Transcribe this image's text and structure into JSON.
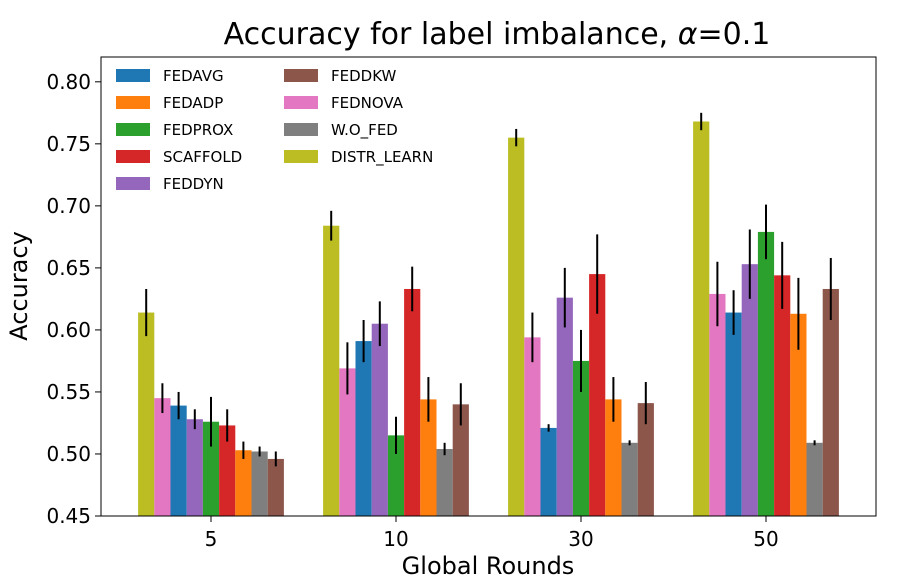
{
  "chart_data": {
    "type": "bar",
    "title": "Accuracy for label imbalance, α=0.1",
    "title_prefix": "Accuracy for label imbalance, ",
    "title_symbol": "α",
    "title_suffix": "=0.1",
    "xlabel": "Global Rounds",
    "ylabel": "Accuracy",
    "categories": [
      "5",
      "10",
      "30",
      "50"
    ],
    "ylim": [
      0.45,
      0.82
    ],
    "yticks": [
      "0.45",
      "0.50",
      "0.55",
      "0.60",
      "0.65",
      "0.70",
      "0.75",
      "0.80"
    ],
    "legend_position": "upper-left, 2 columns",
    "grid": false,
    "series": [
      {
        "name": "FEDAVG",
        "color": "#1f77b4",
        "values": [
          0.539,
          0.591,
          0.521,
          0.614
        ],
        "errors": [
          0.011,
          0.017,
          0.003,
          0.018
        ]
      },
      {
        "name": "FEDADP",
        "color": "#ff7f0e",
        "values": [
          0.503,
          0.544,
          0.544,
          0.613
        ],
        "errors": [
          0.007,
          0.018,
          0.018,
          0.029
        ]
      },
      {
        "name": "FEDPROX",
        "color": "#2ca02c",
        "values": [
          0.526,
          0.515,
          0.575,
          0.679
        ],
        "errors": [
          0.02,
          0.015,
          0.025,
          0.022
        ]
      },
      {
        "name": "SCAFFOLD",
        "color": "#d62728",
        "values": [
          0.523,
          0.633,
          0.645,
          0.644
        ],
        "errors": [
          0.013,
          0.018,
          0.032,
          0.027
        ]
      },
      {
        "name": "FEDDYN",
        "color": "#9467bd",
        "values": [
          0.528,
          0.605,
          0.626,
          0.653
        ],
        "errors": [
          0.008,
          0.018,
          0.024,
          0.028
        ]
      },
      {
        "name": "FEDDKW",
        "color": "#8c564b",
        "values": [
          0.496,
          0.54,
          0.541,
          0.633
        ],
        "errors": [
          0.006,
          0.017,
          0.017,
          0.025
        ]
      },
      {
        "name": "FEDNOVA",
        "color": "#e377c2",
        "values": [
          0.545,
          0.569,
          0.594,
          0.629
        ],
        "errors": [
          0.012,
          0.021,
          0.02,
          0.026
        ]
      },
      {
        "name": "W.O_FED",
        "color": "#7f7f7f",
        "values": [
          0.502,
          0.504,
          0.509,
          0.509
        ],
        "errors": [
          0.004,
          0.005,
          0.002,
          0.002
        ]
      },
      {
        "name": "DISTR_LEARN",
        "color": "#bcbd22",
        "values": [
          0.614,
          0.684,
          0.755,
          0.768
        ],
        "errors": [
          0.019,
          0.012,
          0.007,
          0.007
        ]
      }
    ],
    "bar_order": [
      "DISTR_LEARN",
      "FEDNOVA",
      "FEDAVG",
      "FEDDYN",
      "FEDPROX",
      "SCAFFOLD",
      "FEDADP",
      "W.O_FED",
      "FEDDKW"
    ]
  }
}
